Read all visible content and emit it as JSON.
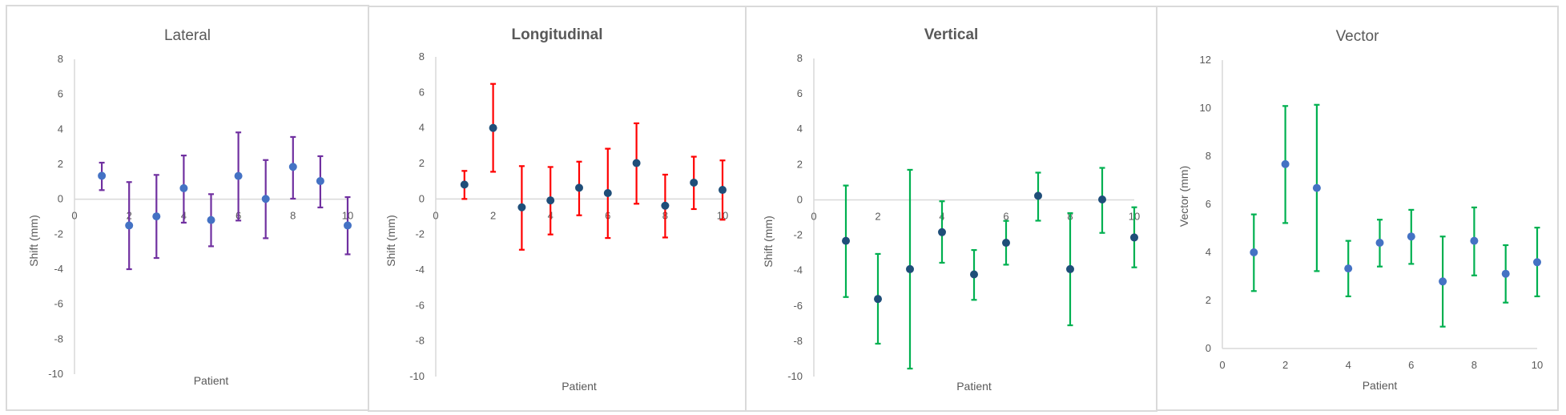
{
  "chart_data": [
    {
      "type": "scatter",
      "title": "Lateral",
      "xlabel": "Patient",
      "ylabel": "Shift (mm)",
      "xlim": [
        0,
        10
      ],
      "ylim": [
        -10,
        8
      ],
      "xticks": [
        0,
        2,
        4,
        6,
        8,
        10
      ],
      "yticks": [
        8,
        6,
        4,
        2,
        0,
        -2,
        -4,
        -6,
        -8,
        -10
      ],
      "grid": false,
      "legend": "none",
      "colors": {
        "marker": "#4472C4",
        "error_bar": "#7030A0"
      },
      "x": [
        1,
        2,
        3,
        4,
        5,
        6,
        7,
        8,
        9,
        10
      ],
      "y": [
        1.34,
        -1.5,
        -0.98,
        0.63,
        -1.19,
        1.33,
        0.02,
        1.85,
        1.04,
        -1.5
      ],
      "err_upper": [
        2.09,
        0.98,
        1.39,
        2.5,
        0.29,
        3.82,
        2.24,
        3.56,
        2.46,
        0.12
      ],
      "err_lower": [
        0.52,
        -4.0,
        -3.36,
        -1.34,
        -2.69,
        -1.22,
        -2.23,
        0.03,
        -0.47,
        -3.15
      ]
    },
    {
      "type": "scatter",
      "title": "Longitudinal",
      "xlabel": "Patient",
      "ylabel": "Shift (mm)",
      "xlim": [
        0,
        10
      ],
      "ylim": [
        -10,
        8
      ],
      "xticks": [
        0,
        2,
        4,
        6,
        8,
        10
      ],
      "yticks": [
        8,
        6,
        4,
        2,
        0,
        -2,
        -4,
        -6,
        -8,
        -10
      ],
      "grid": false,
      "legend": "none",
      "colors": {
        "marker": "#1F4E79",
        "error_bar": "#FF0000"
      },
      "x": [
        1,
        2,
        3,
        4,
        5,
        6,
        7,
        8,
        9,
        10
      ],
      "y": [
        0.81,
        4.0,
        -0.47,
        -0.08,
        0.63,
        0.33,
        2.02,
        -0.38,
        0.92,
        0.51
      ],
      "err_upper": [
        1.58,
        6.48,
        1.85,
        1.8,
        2.1,
        2.83,
        4.26,
        1.37,
        2.38,
        2.17
      ],
      "err_lower": [
        0.0,
        1.53,
        -2.86,
        -2.0,
        -0.92,
        -2.2,
        -0.27,
        -2.17,
        -0.57,
        -1.17
      ]
    },
    {
      "type": "scatter",
      "title": "Vertical",
      "xlabel": "Patient",
      "ylabel": "Shift (mm)",
      "xlim": [
        0,
        10
      ],
      "ylim": [
        -10,
        8
      ],
      "xticks": [
        0,
        2,
        4,
        6,
        8,
        10
      ],
      "yticks": [
        8,
        6,
        4,
        2,
        0,
        -2,
        -4,
        -6,
        -8,
        -10
      ],
      "grid": false,
      "legend": "none",
      "colors": {
        "marker": "#1F4E79",
        "error_bar": "#00B050"
      },
      "x": [
        1,
        2,
        3,
        4,
        5,
        6,
        7,
        8,
        9,
        10
      ],
      "y": [
        -2.32,
        -5.61,
        -3.92,
        -1.83,
        -4.22,
        -2.43,
        0.23,
        -3.92,
        0.02,
        -2.13
      ],
      "err_upper": [
        0.81,
        -3.06,
        1.7,
        -0.08,
        -2.84,
        -1.19,
        1.54,
        -0.75,
        1.81,
        -0.42
      ],
      "err_lower": [
        -5.5,
        -8.14,
        -9.55,
        -3.56,
        -5.66,
        -3.67,
        -1.18,
        -7.1,
        -1.87,
        -3.82
      ]
    },
    {
      "type": "scatter",
      "title": "Vector",
      "xlabel": "Patient",
      "ylabel": "Vector (mm)",
      "xlim": [
        0,
        10
      ],
      "ylim": [
        0,
        12
      ],
      "xticks": [
        0,
        2,
        4,
        6,
        8,
        10
      ],
      "yticks": [
        12,
        10,
        8,
        6,
        4,
        2,
        0
      ],
      "grid": false,
      "legend": "none",
      "colors": {
        "marker": "#4472C4",
        "error_bar": "#00B050"
      },
      "x": [
        1,
        2,
        3,
        4,
        5,
        6,
        7,
        8,
        9,
        10
      ],
      "y": [
        4.0,
        7.67,
        6.68,
        3.33,
        4.4,
        4.66,
        2.79,
        4.48,
        3.11,
        3.59
      ],
      "err_upper": [
        5.58,
        10.09,
        10.14,
        4.48,
        5.36,
        5.77,
        4.66,
        5.87,
        4.3,
        5.03
      ],
      "err_lower": [
        2.39,
        5.22,
        3.22,
        2.17,
        3.41,
        3.52,
        0.91,
        3.04,
        1.91,
        2.17
      ]
    }
  ]
}
